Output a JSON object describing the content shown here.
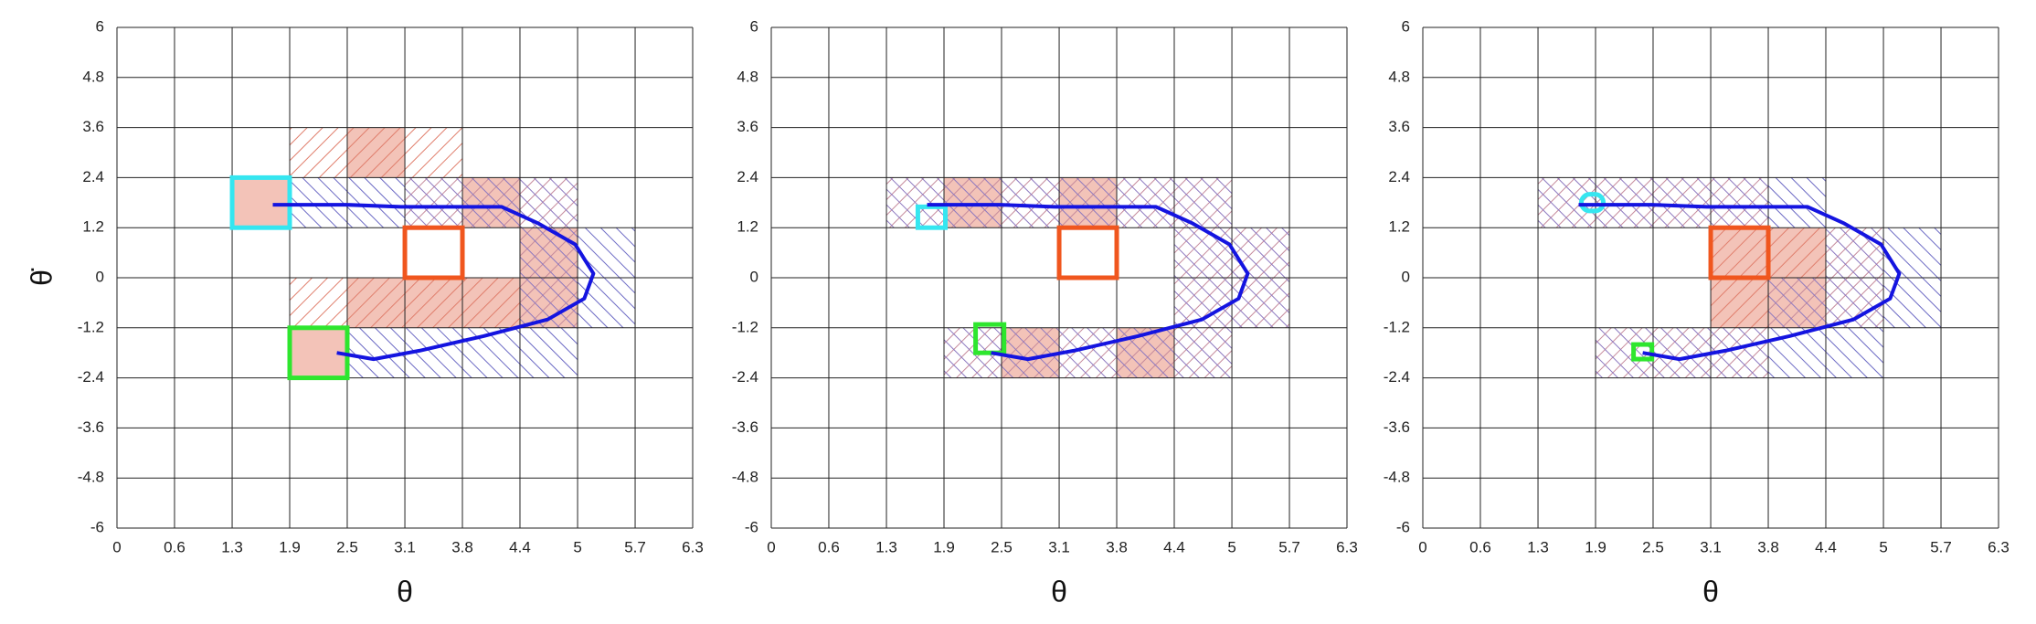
{
  "chart_data": [
    {
      "type": "grid-map",
      "x_label": "θ",
      "y_label": "θ̇",
      "xlim": [
        0,
        6.283
      ],
      "ylim": [
        -6,
        6
      ],
      "xticks": [
        0,
        {
          "value": 0.628,
          "label": "0.6"
        },
        {
          "value": 1.257,
          "label": "1.3"
        },
        {
          "value": 1.885,
          "label": "1.9"
        },
        {
          "value": 2.513,
          "label": "2.5"
        },
        {
          "value": 3.142,
          "label": "3.1"
        },
        {
          "value": 3.77,
          "label": "3.8"
        },
        {
          "value": 4.398,
          "label": "4.4"
        },
        {
          "value": 5.027,
          "label": "5"
        },
        {
          "value": 5.655,
          "label": "5.7"
        },
        {
          "value": 6.283,
          "label": "6.3"
        }
      ],
      "yticks": [
        -6,
        -4.8,
        -3.6,
        -2.4,
        -1.2,
        0,
        1.2,
        2.4,
        3.6,
        4.8,
        6
      ],
      "cells": [
        {
          "x": [
            1.885,
            2.513
          ],
          "y": [
            2.4,
            3.6
          ],
          "hatch": "red",
          "fill": false
        },
        {
          "x": [
            2.513,
            3.142
          ],
          "y": [
            2.4,
            3.6
          ],
          "hatch": "red",
          "fill": true
        },
        {
          "x": [
            3.142,
            3.77
          ],
          "y": [
            2.4,
            3.6
          ],
          "hatch": "red",
          "fill": false
        },
        {
          "x": [
            1.257,
            1.885
          ],
          "y": [
            1.2,
            2.4
          ],
          "hatch": "none",
          "fill": true
        },
        {
          "x": [
            1.885,
            2.513
          ],
          "y": [
            1.2,
            2.4
          ],
          "hatch": "blue",
          "fill": false
        },
        {
          "x": [
            2.513,
            3.142
          ],
          "y": [
            1.2,
            2.4
          ],
          "hatch": "blue",
          "fill": false
        },
        {
          "x": [
            3.142,
            3.77
          ],
          "y": [
            1.2,
            2.4
          ],
          "hatch": "cross",
          "fill": false
        },
        {
          "x": [
            3.77,
            4.398
          ],
          "y": [
            1.2,
            2.4
          ],
          "hatch": "cross",
          "fill": true
        },
        {
          "x": [
            4.398,
            5.027
          ],
          "y": [
            1.2,
            2.4
          ],
          "hatch": "cross",
          "fill": false
        },
        {
          "x": [
            4.398,
            5.027
          ],
          "y": [
            0,
            1.2
          ],
          "hatch": "cross",
          "fill": true
        },
        {
          "x": [
            5.027,
            5.655
          ],
          "y": [
            0,
            1.2
          ],
          "hatch": "blue",
          "fill": false
        },
        {
          "x": [
            1.885,
            2.513
          ],
          "y": [
            -1.2,
            0
          ],
          "hatch": "red",
          "fill": false
        },
        {
          "x": [
            2.513,
            3.142
          ],
          "y": [
            -1.2,
            0
          ],
          "hatch": "red",
          "fill": true
        },
        {
          "x": [
            3.142,
            3.77
          ],
          "y": [
            -1.2,
            0
          ],
          "hatch": "red",
          "fill": true
        },
        {
          "x": [
            3.77,
            4.398
          ],
          "y": [
            -1.2,
            0
          ],
          "hatch": "red",
          "fill": true
        },
        {
          "x": [
            4.398,
            5.027
          ],
          "y": [
            -1.2,
            0
          ],
          "hatch": "cross",
          "fill": true
        },
        {
          "x": [
            5.027,
            5.655
          ],
          "y": [
            -1.2,
            0
          ],
          "hatch": "blue",
          "fill": false
        },
        {
          "x": [
            1.885,
            2.513
          ],
          "y": [
            -2.4,
            -1.2
          ],
          "hatch": "none",
          "fill": true
        },
        {
          "x": [
            2.513,
            3.142
          ],
          "y": [
            -2.4,
            -1.2
          ],
          "hatch": "blue",
          "fill": false
        },
        {
          "x": [
            3.142,
            3.77
          ],
          "y": [
            -2.4,
            -1.2
          ],
          "hatch": "blue",
          "fill": false
        },
        {
          "x": [
            3.77,
            4.398
          ],
          "y": [
            -2.4,
            -1.2
          ],
          "hatch": "blue",
          "fill": false
        },
        {
          "x": [
            4.398,
            5.027
          ],
          "y": [
            -2.4,
            -1.2
          ],
          "hatch": "blue",
          "fill": false
        }
      ],
      "boxes": [
        {
          "x": [
            1.257,
            1.885
          ],
          "y": [
            1.2,
            2.4
          ],
          "color": "#35e6f0",
          "rounded": false
        },
        {
          "x": [
            1.885,
            2.513
          ],
          "y": [
            -2.4,
            -1.2
          ],
          "color": "#2ee62e",
          "rounded": false
        },
        {
          "x": [
            3.142,
            3.77
          ],
          "y": [
            0,
            1.2
          ],
          "color": "#f0561e",
          "rounded": false
        }
      ],
      "trajectory": {
        "color": "#1414e0",
        "x": [
          1.7,
          2.5,
          3.1,
          3.8,
          4.2,
          4.6,
          5.0,
          5.2,
          5.1,
          4.7,
          4.0,
          3.3,
          2.8,
          2.4
        ],
        "y": [
          1.75,
          1.75,
          1.7,
          1.7,
          1.7,
          1.3,
          0.8,
          0.1,
          -0.5,
          -1.0,
          -1.4,
          -1.75,
          -1.95,
          -1.8
        ]
      }
    },
    {
      "type": "grid-map",
      "x_label": "θ",
      "xlim": [
        0,
        6.283
      ],
      "ylim": [
        -6,
        6
      ],
      "xticks": [
        0,
        {
          "value": 0.628,
          "label": "0.6"
        },
        {
          "value": 1.257,
          "label": "1.3"
        },
        {
          "value": 1.885,
          "label": "1.9"
        },
        {
          "value": 2.513,
          "label": "2.5"
        },
        {
          "value": 3.142,
          "label": "3.1"
        },
        {
          "value": 3.77,
          "label": "3.8"
        },
        {
          "value": 4.398,
          "label": "4.4"
        },
        {
          "value": 5.027,
          "label": "5"
        },
        {
          "value": 5.655,
          "label": "5.7"
        },
        {
          "value": 6.283,
          "label": "6.3"
        }
      ],
      "yticks": [
        -6,
        -4.8,
        -3.6,
        -2.4,
        -1.2,
        0,
        1.2,
        2.4,
        3.6,
        4.8,
        6
      ],
      "cells": [
        {
          "x": [
            1.257,
            1.885
          ],
          "y": [
            1.2,
            2.4
          ],
          "hatch": "cross",
          "fill": false
        },
        {
          "x": [
            1.885,
            2.513
          ],
          "y": [
            1.2,
            2.4
          ],
          "hatch": "cross",
          "fill": true
        },
        {
          "x": [
            2.513,
            3.142
          ],
          "y": [
            1.2,
            2.4
          ],
          "hatch": "cross",
          "fill": false
        },
        {
          "x": [
            3.142,
            3.77
          ],
          "y": [
            1.2,
            2.4
          ],
          "hatch": "cross",
          "fill": true
        },
        {
          "x": [
            3.77,
            4.398
          ],
          "y": [
            1.2,
            2.4
          ],
          "hatch": "cross",
          "fill": false
        },
        {
          "x": [
            4.398,
            5.027
          ],
          "y": [
            1.2,
            2.4
          ],
          "hatch": "cross",
          "fill": false
        },
        {
          "x": [
            4.398,
            5.027
          ],
          "y": [
            0,
            1.2
          ],
          "hatch": "cross",
          "fill": false
        },
        {
          "x": [
            5.027,
            5.655
          ],
          "y": [
            0,
            1.2
          ],
          "hatch": "cross",
          "fill": false
        },
        {
          "x": [
            4.398,
            5.027
          ],
          "y": [
            -1.2,
            0
          ],
          "hatch": "cross",
          "fill": false
        },
        {
          "x": [
            5.027,
            5.655
          ],
          "y": [
            -1.2,
            0
          ],
          "hatch": "cross",
          "fill": false
        },
        {
          "x": [
            1.885,
            2.513
          ],
          "y": [
            -2.4,
            -1.2
          ],
          "hatch": "cross",
          "fill": false
        },
        {
          "x": [
            2.513,
            3.142
          ],
          "y": [
            -2.4,
            -1.2
          ],
          "hatch": "cross",
          "fill": true
        },
        {
          "x": [
            3.142,
            3.77
          ],
          "y": [
            -2.4,
            -1.2
          ],
          "hatch": "cross",
          "fill": false
        },
        {
          "x": [
            3.77,
            4.398
          ],
          "y": [
            -2.4,
            -1.2
          ],
          "hatch": "cross",
          "fill": true
        },
        {
          "x": [
            4.398,
            5.027
          ],
          "y": [
            -2.4,
            -1.2
          ],
          "hatch": "cross",
          "fill": false
        }
      ],
      "boxes": [
        {
          "x": [
            1.6,
            1.9
          ],
          "y": [
            1.2,
            1.7
          ],
          "color": "#35e6f0",
          "rounded": false
        },
        {
          "x": [
            2.23,
            2.54
          ],
          "y": [
            -1.8,
            -1.12
          ],
          "color": "#2ee62e",
          "rounded": false
        },
        {
          "x": [
            3.142,
            3.77
          ],
          "y": [
            0,
            1.2
          ],
          "color": "#f0561e",
          "rounded": false
        }
      ],
      "trajectory": {
        "color": "#1414e0",
        "x": [
          1.7,
          2.5,
          3.1,
          3.8,
          4.2,
          4.6,
          5.0,
          5.2,
          5.1,
          4.7,
          4.0,
          3.3,
          2.8,
          2.4
        ],
        "y": [
          1.75,
          1.75,
          1.7,
          1.7,
          1.7,
          1.3,
          0.8,
          0.1,
          -0.5,
          -1.0,
          -1.4,
          -1.75,
          -1.95,
          -1.8
        ]
      }
    },
    {
      "type": "grid-map",
      "x_label": "θ",
      "xlim": [
        0,
        6.283
      ],
      "ylim": [
        -6,
        6
      ],
      "xticks": [
        0,
        {
          "value": 0.628,
          "label": "0.6"
        },
        {
          "value": 1.257,
          "label": "1.3"
        },
        {
          "value": 1.885,
          "label": "1.9"
        },
        {
          "value": 2.513,
          "label": "2.5"
        },
        {
          "value": 3.142,
          "label": "3.1"
        },
        {
          "value": 3.77,
          "label": "3.8"
        },
        {
          "value": 4.398,
          "label": "4.4"
        },
        {
          "value": 5.027,
          "label": "5"
        },
        {
          "value": 5.655,
          "label": "5.7"
        },
        {
          "value": 6.283,
          "label": "6.3"
        }
      ],
      "yticks": [
        -6,
        -4.8,
        -3.6,
        -2.4,
        -1.2,
        0,
        1.2,
        2.4,
        3.6,
        4.8,
        6
      ],
      "cells": [
        {
          "x": [
            1.257,
            1.885
          ],
          "y": [
            1.2,
            2.4
          ],
          "hatch": "cross",
          "fill": false
        },
        {
          "x": [
            1.885,
            2.513
          ],
          "y": [
            1.2,
            2.4
          ],
          "hatch": "cross",
          "fill": false
        },
        {
          "x": [
            2.513,
            3.142
          ],
          "y": [
            1.2,
            2.4
          ],
          "hatch": "cross",
          "fill": false
        },
        {
          "x": [
            3.142,
            3.77
          ],
          "y": [
            1.2,
            2.4
          ],
          "hatch": "cross",
          "fill": false
        },
        {
          "x": [
            3.77,
            4.398
          ],
          "y": [
            1.2,
            2.4
          ],
          "hatch": "blue",
          "fill": false
        },
        {
          "x": [
            3.142,
            3.77
          ],
          "y": [
            0,
            1.2
          ],
          "hatch": "red",
          "fill": true
        },
        {
          "x": [
            3.77,
            4.398
          ],
          "y": [
            0,
            1.2
          ],
          "hatch": "red",
          "fill": true
        },
        {
          "x": [
            4.398,
            5.027
          ],
          "y": [
            0,
            1.2
          ],
          "hatch": "cross",
          "fill": false
        },
        {
          "x": [
            5.027,
            5.655
          ],
          "y": [
            0,
            1.2
          ],
          "hatch": "blue",
          "fill": false
        },
        {
          "x": [
            3.142,
            3.77
          ],
          "y": [
            -1.2,
            0
          ],
          "hatch": "red",
          "fill": true
        },
        {
          "x": [
            3.77,
            4.398
          ],
          "y": [
            -1.2,
            0
          ],
          "hatch": "cross",
          "fill": true
        },
        {
          "x": [
            4.398,
            5.027
          ],
          "y": [
            -1.2,
            0
          ],
          "hatch": "cross",
          "fill": false
        },
        {
          "x": [
            5.027,
            5.655
          ],
          "y": [
            -1.2,
            0
          ],
          "hatch": "blue",
          "fill": false
        },
        {
          "x": [
            1.885,
            2.513
          ],
          "y": [
            -2.4,
            -1.2
          ],
          "hatch": "cross",
          "fill": false
        },
        {
          "x": [
            2.513,
            3.142
          ],
          "y": [
            -2.4,
            -1.2
          ],
          "hatch": "cross",
          "fill": false
        },
        {
          "x": [
            3.142,
            3.77
          ],
          "y": [
            -2.4,
            -1.2
          ],
          "hatch": "cross",
          "fill": false
        },
        {
          "x": [
            3.77,
            4.398
          ],
          "y": [
            -2.4,
            -1.2
          ],
          "hatch": "blue",
          "fill": false
        },
        {
          "x": [
            4.398,
            5.027
          ],
          "y": [
            -2.4,
            -1.2
          ],
          "hatch": "blue",
          "fill": false
        }
      ],
      "boxes": [
        {
          "x": [
            1.73,
            1.97
          ],
          "y": [
            1.6,
            2.0
          ],
          "color": "#35e6f0",
          "rounded": true
        },
        {
          "x": [
            2.3,
            2.5
          ],
          "y": [
            -1.95,
            -1.6
          ],
          "color": "#2ee62e",
          "rounded": false
        },
        {
          "x": [
            3.142,
            3.77
          ],
          "y": [
            0,
            1.2
          ],
          "color": "#f0561e",
          "rounded": false
        }
      ],
      "trajectory": {
        "color": "#1414e0",
        "x": [
          1.7,
          2.5,
          3.1,
          3.8,
          4.2,
          4.6,
          5.0,
          5.2,
          5.1,
          4.7,
          4.0,
          3.3,
          2.8,
          2.4
        ],
        "y": [
          1.75,
          1.75,
          1.7,
          1.7,
          1.7,
          1.3,
          0.8,
          0.1,
          -0.5,
          -1.0,
          -1.4,
          -1.75,
          -1.95,
          -1.8
        ]
      }
    }
  ]
}
